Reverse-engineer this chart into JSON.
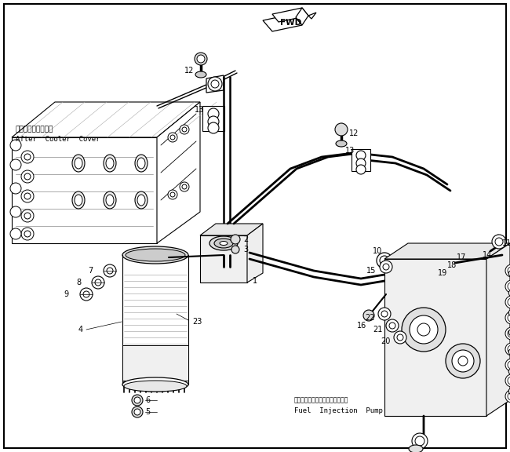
{
  "background_color": "#ffffff",
  "border_color": "#000000",
  "fig_width": 6.5,
  "fig_height": 5.76,
  "dpi": 100,
  "lc": "#000000",
  "lw": 0.8,
  "label_after_cooler_jp": "アフタクーラカバー",
  "label_after_cooler_en": "After  Cooler  Cover",
  "label_fuel_pump_jp": "フェエルインジェクションポンプ",
  "label_fuel_pump_en": "Fuel  Injection  Pump"
}
